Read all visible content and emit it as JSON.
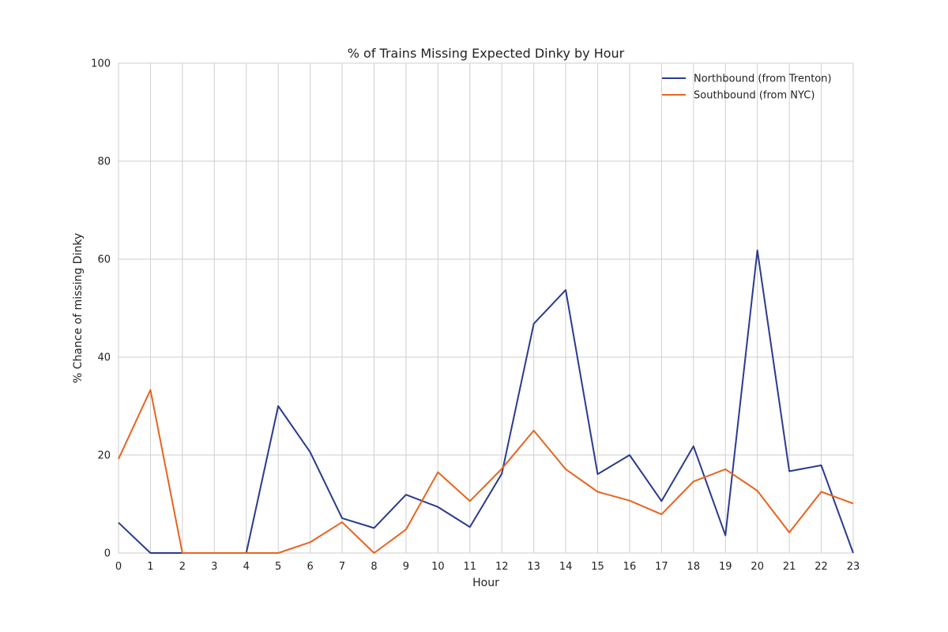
{
  "chart_data": {
    "type": "line",
    "title": "% of Trains Missing Expected Dinky by Hour",
    "xlabel": "Hour",
    "ylabel": "% Chance of missing Dinky",
    "x": [
      0,
      1,
      2,
      3,
      4,
      5,
      6,
      7,
      8,
      9,
      10,
      11,
      12,
      13,
      14,
      15,
      16,
      17,
      18,
      19,
      20,
      21,
      22,
      23
    ],
    "xlim": [
      0,
      23
    ],
    "ylim": [
      0,
      100
    ],
    "xticks": [
      "0",
      "1",
      "2",
      "3",
      "4",
      "5",
      "6",
      "7",
      "8",
      "9",
      "10",
      "11",
      "12",
      "13",
      "14",
      "15",
      "16",
      "17",
      "18",
      "19",
      "20",
      "21",
      "22",
      "23"
    ],
    "yticks": [
      "0",
      "20",
      "40",
      "60",
      "80",
      "100"
    ],
    "grid": true,
    "legend_position": "top-right",
    "series": [
      {
        "name": "Northbound (from Trenton)",
        "color": "#2b3a8f",
        "values": [
          6.2,
          0,
          0,
          0,
          0,
          30,
          20.6,
          7.1,
          5.1,
          11.9,
          9.4,
          5.3,
          16.2,
          46.8,
          53.7,
          16.1,
          20,
          10.6,
          21.8,
          3.6,
          61.8,
          16.7,
          17.9,
          0
        ]
      },
      {
        "name": "Southbound (from NYC)",
        "color": "#e8641e",
        "values": [
          19.2,
          33.3,
          0,
          0,
          0,
          0,
          2.2,
          6.3,
          0,
          4.8,
          16.5,
          10.6,
          17.2,
          25,
          17.1,
          12.5,
          10.7,
          7.9,
          14.6,
          17.1,
          12.7,
          4.2,
          12.5,
          10.1
        ]
      }
    ]
  }
}
